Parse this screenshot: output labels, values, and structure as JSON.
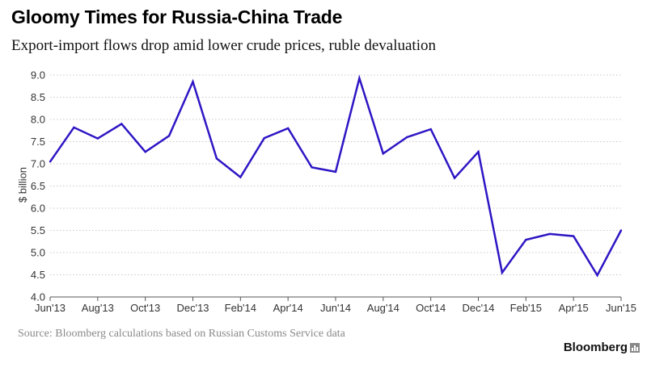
{
  "header": {
    "title": "Gloomy Times for Russia-China Trade",
    "subtitle": "Export-import flows drop amid lower crude prices, ruble devaluation"
  },
  "footer": {
    "source": "Source: Bloomberg calculations based on Russian Customs Service data",
    "brand": "Bloomberg"
  },
  "colors": {
    "line": "#2d16c4",
    "grid": "#c8c8c8",
    "axis": "#555555"
  },
  "chart_data": {
    "type": "line",
    "title": "Gloomy Times for Russia-China Trade",
    "subtitle": "Export-import flows drop amid lower crude prices, ruble devaluation",
    "xlabel": "",
    "ylabel": "$ billion",
    "ylim": [
      4.0,
      9.0
    ],
    "yticks": [
      "4.0",
      "4.5",
      "5.0",
      "5.5",
      "6.0",
      "6.5",
      "7.0",
      "7.5",
      "8.0",
      "8.5",
      "9.0"
    ],
    "xticks": [
      "Jun'13",
      "Aug'13",
      "Oct'13",
      "Dec'13",
      "Feb'14",
      "Apr'14",
      "Jun'14",
      "Aug'14",
      "Oct'14",
      "Dec'14",
      "Feb'15",
      "Apr'15",
      "Jun'15"
    ],
    "grid": "horizontal dotted",
    "series": [
      {
        "name": "Russia-China trade",
        "x": [
          "Jun'13",
          "Jul'13",
          "Aug'13",
          "Sep'13",
          "Oct'13",
          "Nov'13",
          "Dec'13",
          "Jan'14",
          "Feb'14",
          "Mar'14",
          "Apr'14",
          "May'14",
          "Jun'14",
          "Jul'14",
          "Aug'14",
          "Sep'14",
          "Oct'14",
          "Nov'14",
          "Dec'14",
          "Jan'15",
          "Feb'15",
          "Mar'15",
          "Apr'15",
          "May'15",
          "Jun'15"
        ],
        "values": [
          7.05,
          7.82,
          7.57,
          7.9,
          7.27,
          7.63,
          8.85,
          7.12,
          6.7,
          7.58,
          7.8,
          6.92,
          6.82,
          8.93,
          7.23,
          7.6,
          7.78,
          6.68,
          7.27,
          4.55,
          5.29,
          5.42,
          5.37,
          4.49,
          5.5
        ]
      }
    ]
  }
}
